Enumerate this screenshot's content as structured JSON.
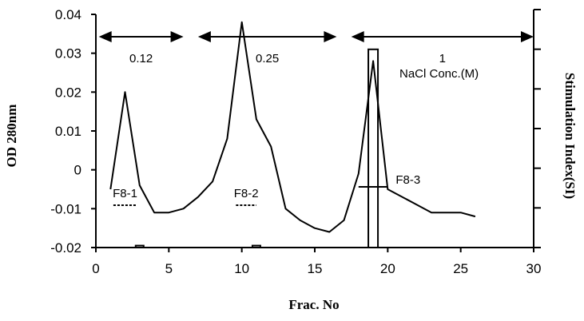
{
  "chart_data": {
    "type": "line",
    "title": "",
    "xlabel": "Frac. No",
    "ylabel": "OD 280nm",
    "y2label": "Stimulation Index(SI)",
    "xlim": [
      0,
      30
    ],
    "ylim": [
      -0.02,
      0.04
    ],
    "x_ticks": [
      0,
      5,
      10,
      15,
      20,
      25,
      30
    ],
    "x_tick_labels": [
      "0",
      "5",
      "10",
      "15",
      "20",
      "25",
      "30"
    ],
    "y_ticks": [
      -0.02,
      -0.01,
      0,
      0.01,
      0.02,
      0.03,
      0.04
    ],
    "y_tick_labels": [
      "-0.02",
      "-0.01",
      "0",
      "0.01",
      "0.02",
      "0.03",
      "0.04"
    ],
    "y2_tick_count": 6,
    "grid": false,
    "series": [
      {
        "values_x": [
          1,
          2,
          3,
          4,
          5,
          6,
          7,
          8,
          9,
          10,
          11,
          12,
          13,
          14,
          15,
          16,
          17,
          18,
          19,
          20,
          21,
          22,
          23,
          24,
          25,
          26
        ],
        "values_y": [
          -0.005,
          0.02,
          -0.004,
          -0.011,
          -0.011,
          -0.01,
          -0.007,
          -0.003,
          0.008,
          0.038,
          0.013,
          0.006,
          -0.01,
          -0.013,
          -0.015,
          -0.016,
          -0.013,
          -0.001,
          0.028,
          -0.005,
          -0.007,
          -0.009,
          -0.011,
          -0.011,
          -0.011,
          -0.012
        ]
      }
    ],
    "si_bars": [
      {
        "x": 3,
        "value": -0.0195
      },
      {
        "x": 11,
        "value": -0.0195
      },
      {
        "x": 19,
        "value": 0.031
      }
    ],
    "nacl_ranges": [
      {
        "from": 0.2,
        "to": 6,
        "label": "0.12"
      },
      {
        "from": 7,
        "to": 16.5,
        "label": "0.25"
      },
      {
        "from": 17.5,
        "to": 30,
        "label": "1"
      }
    ],
    "nacl_label": "NaCl Conc.(M)",
    "fractions": [
      {
        "label": "F8-1",
        "from": 1.2,
        "to": 2.8
      },
      {
        "label": "F8-2",
        "from": 9.6,
        "to": 11
      },
      {
        "label": "F8-3",
        "from": 18,
        "to": 20
      }
    ]
  }
}
